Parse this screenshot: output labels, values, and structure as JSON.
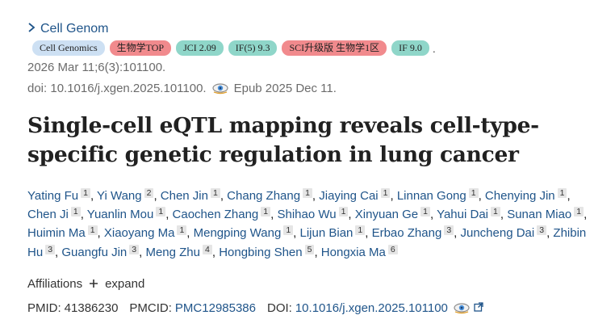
{
  "source": {
    "journal": "Cell Genom"
  },
  "badges": [
    {
      "label": "Cell Genomics",
      "style": "blue"
    },
    {
      "label": "生物学TOP",
      "style": "red"
    },
    {
      "label": "JCI 2.09",
      "style": "teal"
    },
    {
      "label": "IF(5) 9.3",
      "style": "teal"
    },
    {
      "label": "SCI升级版 生物学1区",
      "style": "red"
    },
    {
      "label": "IF 9.0",
      "style": "teal"
    }
  ],
  "badge_trailing": ".",
  "citation": {
    "line1": "2026 Mar 11;6(3):101100.",
    "doi_text": "doi: 10.1016/j.xgen.2025.101100.",
    "epub": "Epub 2025 Dec 11."
  },
  "title": "Single-cell eQTL mapping reveals cell-type-specific genetic regulation in lung cancer",
  "authors": [
    {
      "name": "Yating Fu",
      "aff": "1"
    },
    {
      "name": "Yi Wang",
      "aff": "2"
    },
    {
      "name": "Chen Jin",
      "aff": "1"
    },
    {
      "name": "Chang Zhang",
      "aff": "1"
    },
    {
      "name": "Jiaying Cai",
      "aff": "1"
    },
    {
      "name": "Linnan Gong",
      "aff": "1"
    },
    {
      "name": "Chenying Jin",
      "aff": "1"
    },
    {
      "name": "Chen Ji",
      "aff": "1"
    },
    {
      "name": "Yuanlin Mou",
      "aff": "1"
    },
    {
      "name": "Caochen Zhang",
      "aff": "1"
    },
    {
      "name": "Shihao Wu",
      "aff": "1"
    },
    {
      "name": "Xinyuan Ge",
      "aff": "1"
    },
    {
      "name": "Yahui Dai",
      "aff": "1"
    },
    {
      "name": "Sunan Miao",
      "aff": "1"
    },
    {
      "name": "Huimin Ma",
      "aff": "1"
    },
    {
      "name": "Xiaoyang Ma",
      "aff": "1"
    },
    {
      "name": "Mengping Wang",
      "aff": "1"
    },
    {
      "name": "Lijun Bian",
      "aff": "1"
    },
    {
      "name": "Erbao Zhang",
      "aff": "3"
    },
    {
      "name": "Juncheng Dai",
      "aff": "3"
    },
    {
      "name": "Zhibin Hu",
      "aff": "3"
    },
    {
      "name": "Guangfu Jin",
      "aff": "3"
    },
    {
      "name": "Meng Zhu",
      "aff": "4"
    },
    {
      "name": "Hongbing Shen",
      "aff": "5"
    },
    {
      "name": "Hongxia Ma",
      "aff": "6"
    }
  ],
  "affiliations": {
    "label": "Affiliations",
    "expand": "expand"
  },
  "ids": {
    "pmid_label": "PMID:",
    "pmid": "41386230",
    "pmcid_label": "PMCID:",
    "pmcid": "PMC12985386",
    "doi_label": "DOI:",
    "doi": "10.1016/j.xgen.2025.101100"
  },
  "colors": {
    "link": "#20558a",
    "badge_blue": "#cde0f3",
    "badge_red": "#f18a8d",
    "badge_teal": "#8fd6c9"
  }
}
